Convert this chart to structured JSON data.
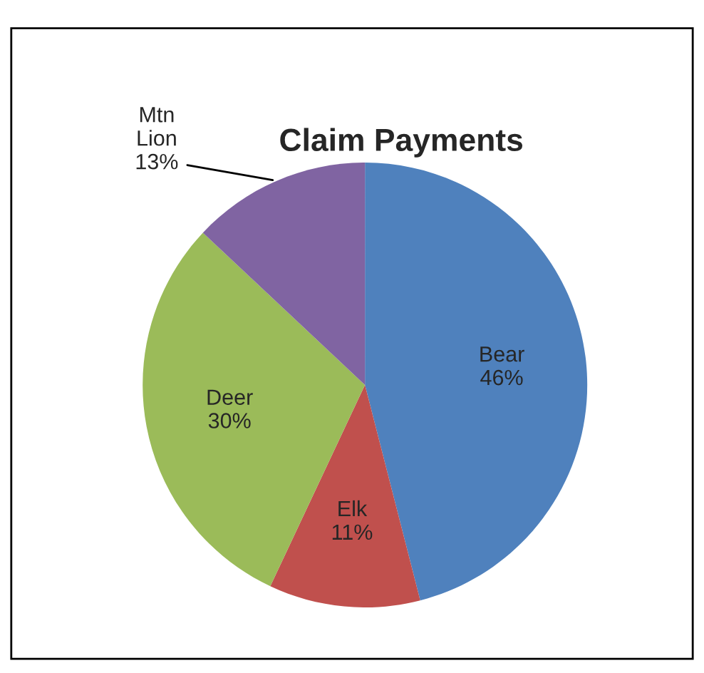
{
  "chart_data": {
    "type": "pie",
    "title": "Claim Payments",
    "categories": [
      "Bear",
      "Elk",
      "Deer",
      "Mtn Lion"
    ],
    "values": [
      46,
      11,
      30,
      13
    ],
    "value_labels": [
      "46%",
      "11%",
      "30%",
      "13%"
    ],
    "colors": [
      "#4f81bd",
      "#c0504d",
      "#9bbb59",
      "#8064a2"
    ],
    "legend": false
  }
}
